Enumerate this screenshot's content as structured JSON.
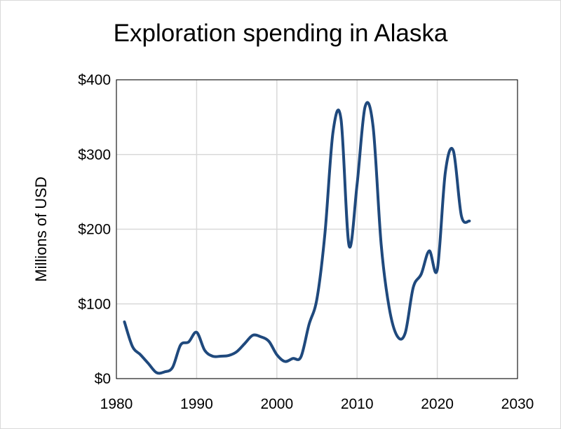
{
  "chart_data": {
    "type": "line",
    "title": "Exploration spending in Alaska",
    "xlabel": "",
    "ylabel": "Millions of USD",
    "xlim": [
      1980,
      2030
    ],
    "ylim": [
      0,
      400
    ],
    "x_ticks": [
      1980,
      1990,
      2000,
      2010,
      2020,
      2030
    ],
    "x_tick_labels": [
      "1980",
      "1990",
      "2000",
      "2010",
      "2020",
      "2030"
    ],
    "y_ticks": [
      0,
      100,
      200,
      300,
      400
    ],
    "y_tick_labels": [
      "$0",
      "$100",
      "$200",
      "$300",
      "$400"
    ],
    "grid": true,
    "legend": "none",
    "line_color": "#1f497d",
    "series": [
      {
        "x": [
          1981,
          1982,
          1983,
          1984,
          1985,
          1986,
          1987,
          1988,
          1989,
          1990,
          1991,
          1992,
          1993,
          1994,
          1995,
          1996,
          1997,
          1998,
          1999,
          2000,
          2001,
          2002,
          2003,
          2004,
          2005,
          2006,
          2007,
          2008,
          2009,
          2010,
          2011,
          2012,
          2013,
          2014,
          2015,
          2016,
          2017,
          2018,
          2019,
          2020,
          2021,
          2022,
          2023,
          2024
        ],
        "values": [
          76,
          43,
          32,
          20,
          8,
          9,
          15,
          45,
          49,
          62,
          38,
          30,
          30,
          31,
          36,
          47,
          58,
          56,
          50,
          32,
          23,
          27,
          29,
          72,
          107,
          195,
          330,
          347,
          178,
          260,
          364,
          337,
          180,
          95,
          57,
          61,
          122,
          140,
          171,
          146,
          276,
          305,
          218,
          211
        ]
      }
    ]
  }
}
